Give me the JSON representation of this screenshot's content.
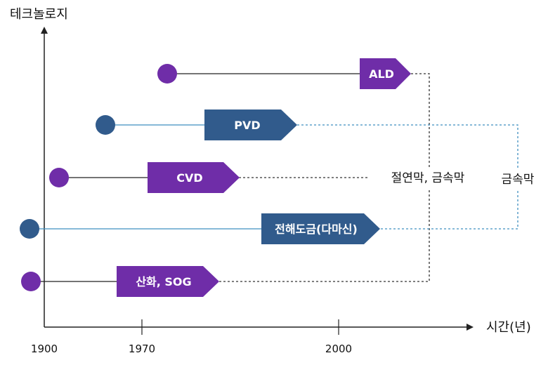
{
  "axes": {
    "y_title": "테크놀로지",
    "x_title": "시간(년)",
    "x_ticks": [
      "1900",
      "1970",
      "2000"
    ]
  },
  "colors": {
    "purple": "#6f2da8",
    "blue": "#315b8c",
    "black_line": "#222222",
    "blue_line": "#3f8fc0"
  },
  "tracks": [
    {
      "label": "ALD",
      "color": "purple"
    },
    {
      "label": "PVD",
      "color": "blue"
    },
    {
      "label": "CVD",
      "color": "purple"
    },
    {
      "label": "전해도금(다마신)",
      "color": "blue"
    },
    {
      "label": "산화, SOG",
      "color": "purple"
    }
  ],
  "annotations": {
    "insulating_metal": "절연막, 금속막",
    "metal": "금속막"
  }
}
